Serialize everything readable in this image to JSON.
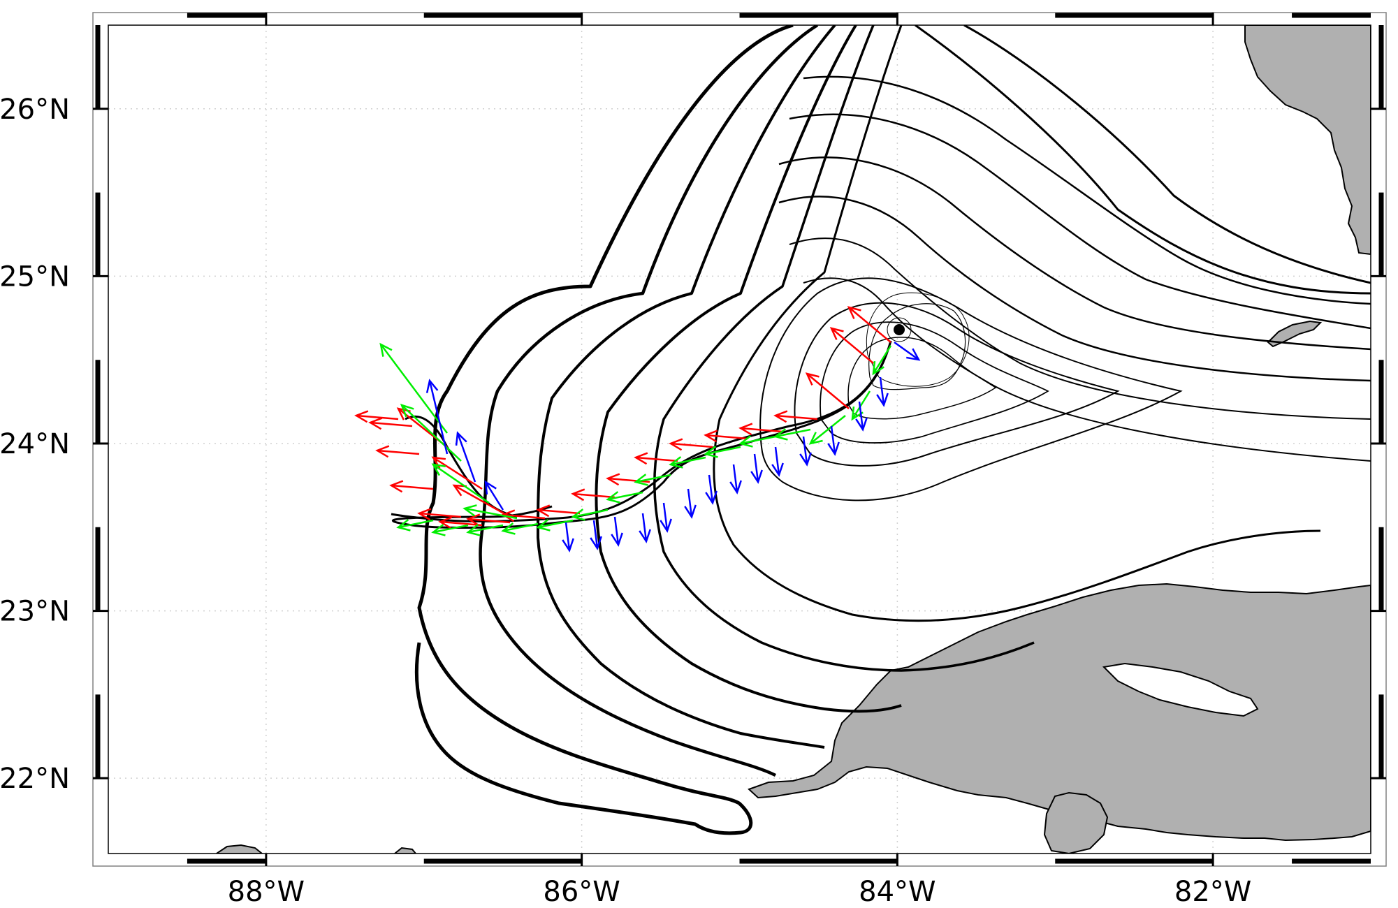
{
  "map": {
    "lon_ticks": [
      {
        "value": -88,
        "label": "88°W"
      },
      {
        "value": -86,
        "label": "86°W"
      },
      {
        "value": -84,
        "label": "84°W"
      },
      {
        "value": -82,
        "label": "82°W"
      }
    ],
    "lat_ticks": [
      {
        "value": 26,
        "label": "26°N"
      },
      {
        "value": 25,
        "label": "25°N"
      },
      {
        "value": 24,
        "label": "24°N"
      },
      {
        "value": 23,
        "label": "23°N"
      },
      {
        "value": 22,
        "label": "22°N"
      }
    ],
    "lon_range": [
      -89.0,
      -81.0
    ],
    "lat_range": [
      21.55,
      26.5
    ],
    "grid": true,
    "colors": {
      "land": "#b0b0b0",
      "track": "#000000",
      "arrow_red": "#ff0000",
      "arrow_green": "#00ee00",
      "arrow_blue": "#0000ff"
    },
    "start_point": {
      "lon": -84.0,
      "lat": 24.65
    }
  }
}
